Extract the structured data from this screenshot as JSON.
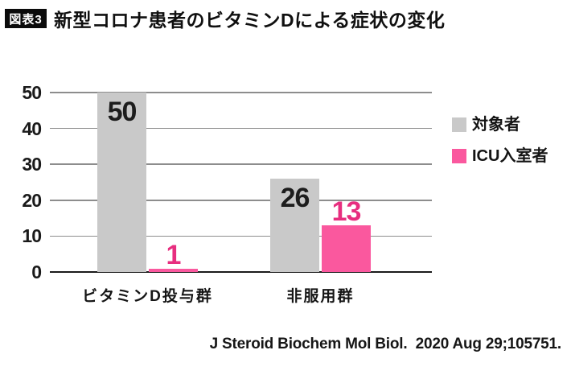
{
  "header": {
    "badge": "図表3",
    "title": "新型コロナ患者のビタミンDによる症状の変化"
  },
  "chart_data": {
    "type": "bar",
    "categories": [
      "ビタミンD投与群",
      "非服用群"
    ],
    "series": [
      {
        "name": "対象者",
        "values": [
          50,
          26
        ],
        "color": "#c9c9c9",
        "label_color": "#1d1d1d",
        "label_position": "inside"
      },
      {
        "name": "ICU入室者",
        "values": [
          1,
          13
        ],
        "color": "#fa589e",
        "label_color": "#e72e7f",
        "label_position": "above"
      }
    ],
    "ylim": [
      0,
      50
    ],
    "yticks": [
      0,
      10,
      20,
      30,
      40,
      50
    ],
    "grid": "horizontal",
    "legend_position": "right",
    "colors": {
      "gridline": "#8d8d8d",
      "axis": "#1b1b1b",
      "badge_background": "#0b0b0b"
    }
  },
  "source": "J Steroid Biochem Mol Biol.  2020 Aug 29;105751."
}
